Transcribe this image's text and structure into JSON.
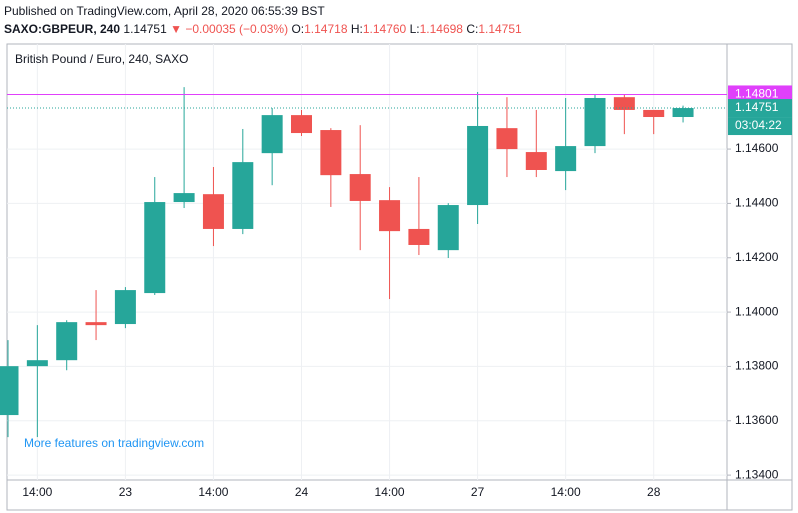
{
  "header": {
    "published": "Published on TradingView.com, April 28, 2020 06:55:39 BST",
    "symbol": "SAXO:GBPEUR, 240",
    "last": "1.14751",
    "change": "▼ −0.00035 (−0.03%)",
    "ohlc": [
      {
        "label": "O:",
        "value": "1.14718"
      },
      {
        "label": "H:",
        "value": "1.14760"
      },
      {
        "label": "L:",
        "value": "1.14698"
      },
      {
        "label": "C:",
        "value": "1.14751"
      }
    ]
  },
  "chart_data": {
    "type": "candlestick",
    "title": "British Pound / Euro, 240, SAXO",
    "watermark": "More features on tradingview.com",
    "categories": [
      null,
      "14:00",
      null,
      null,
      "23",
      null,
      null,
      "14:00",
      null,
      null,
      "24",
      null,
      null,
      "14:00",
      null,
      null,
      "27",
      null,
      null,
      "14:00",
      null,
      null,
      "28",
      null
    ],
    "open": [
      1.13621,
      1.13801,
      1.13823,
      1.13963,
      1.13956,
      1.1407,
      1.14405,
      1.14434,
      1.14306,
      1.14585,
      1.14725,
      1.1467,
      1.14508,
      1.14412,
      1.14306,
      1.14228,
      1.14394,
      1.14677,
      1.14589,
      1.14519,
      1.14611,
      1.14791,
      1.14744,
      1.14718
    ],
    "high": [
      1.13897,
      1.13952,
      1.1397,
      1.14081,
      1.14092,
      1.14497,
      1.14828,
      1.14534,
      1.14674,
      1.14751,
      1.14744,
      1.14677,
      1.14688,
      1.1446,
      1.14497,
      1.14401,
      1.1481,
      1.14791,
      1.14744,
      1.14788,
      1.14799,
      1.14799,
      1.14744,
      1.1476
    ],
    "low": [
      1.1354,
      1.1354,
      1.13786,
      1.13897,
      1.13941,
      1.14063,
      1.14383,
      1.14243,
      1.14287,
      1.14467,
      1.14648,
      1.14387,
      1.14228,
      1.14048,
      1.1421,
      1.14199,
      1.14324,
      1.14497,
      1.14497,
      1.14449,
      1.14585,
      1.14655,
      1.14655,
      1.14698
    ],
    "close": [
      1.13801,
      1.13823,
      1.13963,
      1.13952,
      1.14081,
      1.14405,
      1.14438,
      1.14306,
      1.14552,
      1.14725,
      1.14659,
      1.14504,
      1.14409,
      1.14298,
      1.14247,
      1.14394,
      1.14685,
      1.146,
      1.14523,
      1.14611,
      1.14788,
      1.14744,
      1.14718,
      1.14751
    ],
    "up_color": "#26a69a",
    "down_color": "#ef5350",
    "ylim": [
      1.13382,
      1.14972
    ],
    "yticks": [
      {
        "value": 1.134,
        "label": "1.13400"
      },
      {
        "value": 1.136,
        "label": "1.13600"
      },
      {
        "value": 1.138,
        "label": "1.13800"
      },
      {
        "value": 1.14,
        "label": "1.14000"
      },
      {
        "value": 1.142,
        "label": "1.14200"
      },
      {
        "value": 1.144,
        "label": "1.14400"
      },
      {
        "value": 1.146,
        "label": "1.14600"
      }
    ],
    "grid": true,
    "price_lines": [
      {
        "value": 1.14801,
        "color": "#e040fb"
      },
      {
        "value": 1.14751,
        "color": "#26a69a"
      }
    ],
    "countdown": "03:04:22"
  }
}
